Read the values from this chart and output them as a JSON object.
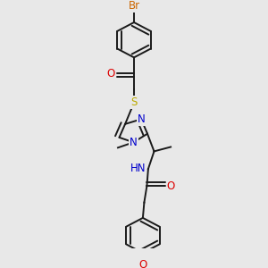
{
  "background_color": "#e8e8e8",
  "atom_colors": {
    "C": "#000000",
    "H": "#000000",
    "N": "#0000cc",
    "O": "#dd0000",
    "S": "#bbaa00",
    "Br": "#cc6600"
  },
  "bond_color": "#1a1a1a",
  "bond_width": 1.4,
  "font_size_atoms": 8.5
}
